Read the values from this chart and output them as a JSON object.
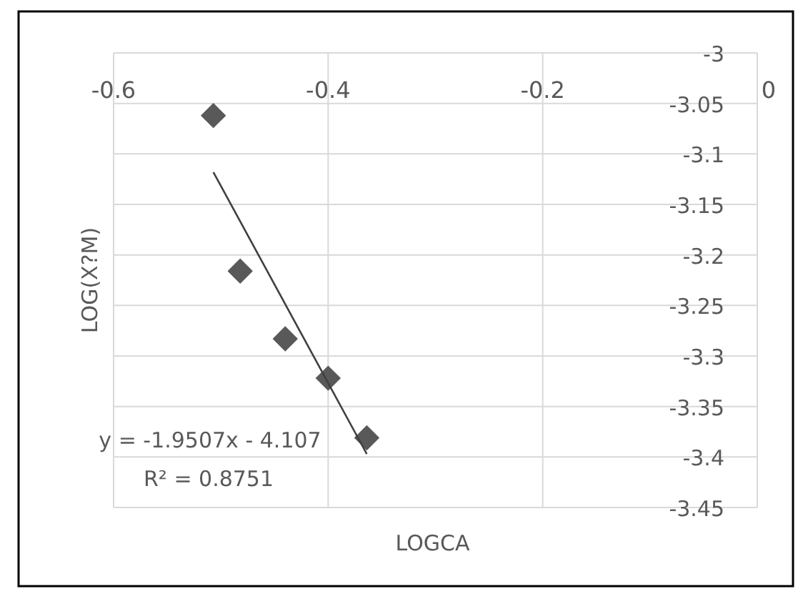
{
  "chart_data": {
    "type": "scatter",
    "xlabel": "LOGCA",
    "ylabel": "LOG(X?M)",
    "xlim": [
      -0.6,
      0
    ],
    "xticks": [
      -0.6,
      -0.4,
      -0.2,
      0
    ],
    "ylim": [
      -3.45,
      -3
    ],
    "yticks": [
      -3.45,
      -3.4,
      -3.35,
      -3.3,
      -3.25,
      -3.2,
      -3.15,
      -3.1,
      -3.05,
      -3
    ],
    "grid": true,
    "marker": "diamond",
    "series": [
      {
        "color": "#595959",
        "x": [
          -0.507,
          -0.482,
          -0.44,
          -0.4,
          -0.364
        ],
        "values": [
          -3.062,
          -3.216,
          -3.283,
          -3.322,
          -3.381
        ]
      },
      {
        "type": "line",
        "color": "#404040",
        "marker": "none",
        "line_style": "solid",
        "x": [
          -0.507,
          -0.364
        ],
        "values": [
          -3.118,
          -3.397
        ]
      }
    ],
    "annotations": [
      "y = -1.9507x - 4.107",
      "R² = 0.8751"
    ]
  }
}
